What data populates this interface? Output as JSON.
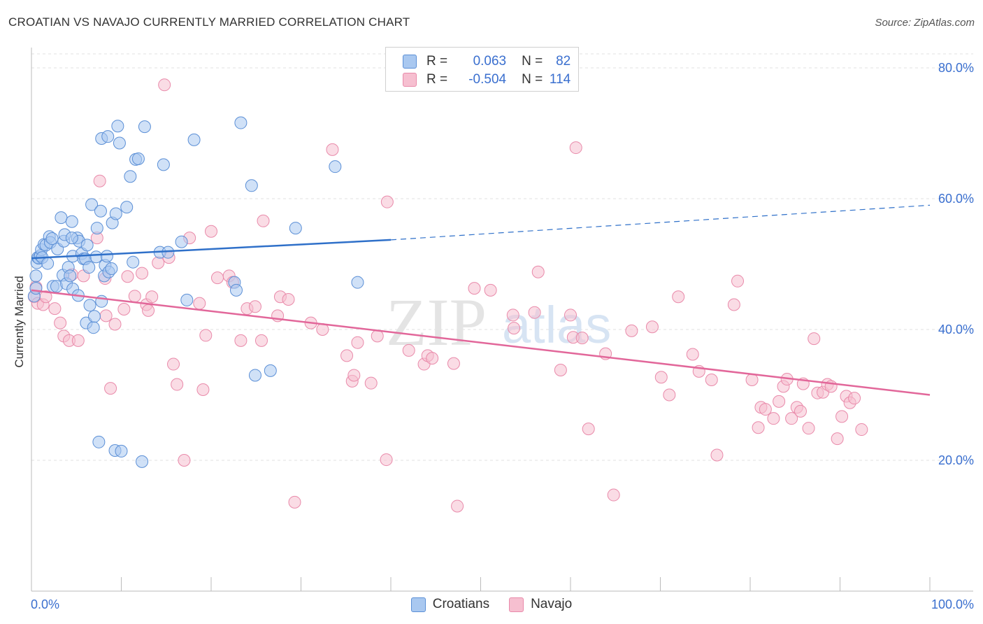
{
  "header": {
    "title": "CROATIAN VS NAVAJO CURRENTLY MARRIED CORRELATION CHART",
    "source": "Source: ZipAtlas.com"
  },
  "legend_top": {
    "rows": [
      {
        "r_label": "R =",
        "r_value": "0.063",
        "n_label": "N =",
        "n_value": "82"
      },
      {
        "r_label": "R =",
        "r_value": "-0.504",
        "n_label": "N =",
        "n_value": "114"
      }
    ]
  },
  "legend_bottom": {
    "items": [
      {
        "label": "Croatians"
      },
      {
        "label": "Navajo"
      }
    ]
  },
  "watermark": {
    "zip": "ZIP",
    "atlas": "atlas"
  },
  "colors": {
    "blue_fill": "#a9c8f0",
    "blue_stroke": "#5b8fd6",
    "blue_line": "#2f70c9",
    "pink_fill": "#f6bfd0",
    "pink_stroke": "#e98aaa",
    "pink_line": "#e2679a",
    "tick_text": "#3a6fcf",
    "grid": "#e2e2e2"
  },
  "chart_data": {
    "type": "scatter",
    "title": "CROATIAN VS NAVAJO CURRENTLY MARRIED CORRELATION CHART",
    "xlabel": "",
    "ylabel": "Currently Married",
    "xlim": [
      0,
      100
    ],
    "ylim": [
      0,
      80
    ],
    "x_tick_labels": [
      {
        "value": 0,
        "label": "0.0%"
      },
      {
        "value": 100,
        "label": "100.0%"
      }
    ],
    "y_tick_labels": [
      {
        "value": 20,
        "label": "20.0%"
      },
      {
        "value": 40,
        "label": "40.0%"
      },
      {
        "value": 60,
        "label": "60.0%"
      },
      {
        "value": 80,
        "label": "80.0%"
      }
    ],
    "x_minor_ticks": [
      0,
      10,
      20,
      30,
      40,
      50,
      60,
      70,
      80,
      90,
      100
    ],
    "grid": true,
    "series": [
      {
        "name": "Croatians",
        "r": 0.063,
        "n": 82,
        "trend": {
          "x0": 0,
          "y0": 50.9,
          "x1": 40,
          "y1": 53.7,
          "dash_x1": 100,
          "dash_y1": 59.0
        },
        "points": [
          [
            0.3,
            45.1
          ],
          [
            0.5,
            46.3
          ],
          [
            0.5,
            48.2
          ],
          [
            0.6,
            50.2
          ],
          [
            0.7,
            51.0
          ],
          [
            0.8,
            50.9
          ],
          [
            1.0,
            51.3
          ],
          [
            1.1,
            52.2
          ],
          [
            1.2,
            51.0
          ],
          [
            1.4,
            53.0
          ],
          [
            1.6,
            52.9
          ],
          [
            1.8,
            50.1
          ],
          [
            2.0,
            54.2
          ],
          [
            2.1,
            53.3
          ],
          [
            2.3,
            53.9
          ],
          [
            2.4,
            46.6
          ],
          [
            2.8,
            46.6
          ],
          [
            2.9,
            52.3
          ],
          [
            3.3,
            57.1
          ],
          [
            3.5,
            48.3
          ],
          [
            3.6,
            53.5
          ],
          [
            3.7,
            54.5
          ],
          [
            3.9,
            47.0
          ],
          [
            4.1,
            49.5
          ],
          [
            4.3,
            48.2
          ],
          [
            4.5,
            56.5
          ],
          [
            4.6,
            46.2
          ],
          [
            4.6,
            51.2
          ],
          [
            5.1,
            54.0
          ],
          [
            5.2,
            45.2
          ],
          [
            5.3,
            53.5
          ],
          [
            5.6,
            51.6
          ],
          [
            5.8,
            50.8
          ],
          [
            6.0,
            50.8
          ],
          [
            6.1,
            41.0
          ],
          [
            6.2,
            52.9
          ],
          [
            6.4,
            49.5
          ],
          [
            6.5,
            43.7
          ],
          [
            6.7,
            59.1
          ],
          [
            6.9,
            40.3
          ],
          [
            7.0,
            42.0
          ],
          [
            7.2,
            51.1
          ],
          [
            7.3,
            55.5
          ],
          [
            7.5,
            22.8
          ],
          [
            7.7,
            58.1
          ],
          [
            7.8,
            44.3
          ],
          [
            7.8,
            69.2
          ],
          [
            8.1,
            48.2
          ],
          [
            8.2,
            49.8
          ],
          [
            8.4,
            51.2
          ],
          [
            8.5,
            69.5
          ],
          [
            8.6,
            48.8
          ],
          [
            8.9,
            49.3
          ],
          [
            9.0,
            56.3
          ],
          [
            9.3,
            21.5
          ],
          [
            9.4,
            57.7
          ],
          [
            9.6,
            71.1
          ],
          [
            9.8,
            68.5
          ],
          [
            10.0,
            21.4
          ],
          [
            10.6,
            58.7
          ],
          [
            11.0,
            63.4
          ],
          [
            11.3,
            50.3
          ],
          [
            11.6,
            66.0
          ],
          [
            11.9,
            66.1
          ],
          [
            12.3,
            19.8
          ],
          [
            12.6,
            71.0
          ],
          [
            14.3,
            51.8
          ],
          [
            14.7,
            65.2
          ],
          [
            15.2,
            51.8
          ],
          [
            16.7,
            53.4
          ],
          [
            17.3,
            44.5
          ],
          [
            18.1,
            69.0
          ],
          [
            22.6,
            47.2
          ],
          [
            22.8,
            46.0
          ],
          [
            23.3,
            71.6
          ],
          [
            24.9,
            33.0
          ],
          [
            24.5,
            62.0
          ],
          [
            26.6,
            33.7
          ],
          [
            29.4,
            55.5
          ],
          [
            33.8,
            64.9
          ],
          [
            36.3,
            47.2
          ],
          [
            4.5,
            54.0
          ]
        ]
      },
      {
        "name": "Navajo",
        "r": -0.504,
        "n": 114,
        "trend": {
          "x0": 0,
          "y0": 46.0,
          "x1": 100,
          "y1": 30.0
        },
        "points": [
          [
            0.3,
            45.0
          ],
          [
            0.5,
            46.5
          ],
          [
            0.7,
            44.0
          ],
          [
            1.3,
            43.8
          ],
          [
            1.6,
            45.0
          ],
          [
            2.6,
            43.2
          ],
          [
            3.2,
            41.0
          ],
          [
            3.6,
            39.0
          ],
          [
            4.2,
            38.3
          ],
          [
            4.5,
            48.4
          ],
          [
            5.2,
            38.3
          ],
          [
            5.8,
            48.2
          ],
          [
            7.3,
            54.0
          ],
          [
            7.6,
            62.7
          ],
          [
            8.2,
            47.8
          ],
          [
            8.3,
            42.1
          ],
          [
            8.8,
            31.0
          ],
          [
            9.3,
            40.8
          ],
          [
            10.3,
            43.1
          ],
          [
            10.7,
            48.1
          ],
          [
            11.5,
            45.1
          ],
          [
            12.3,
            48.6
          ],
          [
            12.8,
            43.8
          ],
          [
            13.0,
            42.9
          ],
          [
            13.4,
            45.0
          ],
          [
            14.1,
            50.2
          ],
          [
            14.8,
            77.4
          ],
          [
            15.3,
            51.0
          ],
          [
            15.8,
            34.7
          ],
          [
            16.2,
            31.6
          ],
          [
            17.0,
            20.0
          ],
          [
            17.6,
            54.0
          ],
          [
            18.7,
            44.0
          ],
          [
            19.1,
            30.8
          ],
          [
            19.4,
            39.1
          ],
          [
            20.0,
            55.0
          ],
          [
            20.7,
            47.9
          ],
          [
            22.0,
            48.2
          ],
          [
            22.4,
            47.2
          ],
          [
            23.3,
            38.3
          ],
          [
            24.0,
            43.2
          ],
          [
            24.9,
            43.5
          ],
          [
            25.6,
            38.3
          ],
          [
            25.8,
            56.6
          ],
          [
            27.4,
            42.1
          ],
          [
            27.7,
            45.0
          ],
          [
            28.6,
            44.6
          ],
          [
            29.3,
            13.6
          ],
          [
            31.1,
            41.0
          ],
          [
            32.4,
            40.0
          ],
          [
            33.5,
            67.5
          ],
          [
            35.1,
            36.0
          ],
          [
            35.7,
            32.1
          ],
          [
            35.9,
            33.0
          ],
          [
            36.3,
            38.0
          ],
          [
            37.8,
            31.8
          ],
          [
            38.5,
            39.0
          ],
          [
            39.5,
            20.1
          ],
          [
            39.6,
            59.5
          ],
          [
            42.0,
            36.8
          ],
          [
            43.7,
            34.7
          ],
          [
            44.1,
            36.0
          ],
          [
            44.6,
            35.6
          ],
          [
            47.0,
            34.8
          ],
          [
            47.4,
            13.0
          ],
          [
            49.3,
            46.3
          ],
          [
            51.1,
            46.0
          ],
          [
            53.6,
            42.2
          ],
          [
            53.7,
            40.2
          ],
          [
            56.0,
            42.6
          ],
          [
            56.4,
            48.8
          ],
          [
            58.9,
            33.8
          ],
          [
            60.0,
            42.2
          ],
          [
            60.3,
            38.8
          ],
          [
            60.6,
            67.8
          ],
          [
            61.3,
            38.7
          ],
          [
            62.0,
            24.8
          ],
          [
            63.9,
            36.3
          ],
          [
            64.8,
            14.7
          ],
          [
            66.8,
            39.8
          ],
          [
            69.1,
            40.4
          ],
          [
            70.1,
            32.7
          ],
          [
            71.0,
            30.0
          ],
          [
            72.0,
            45.0
          ],
          [
            73.6,
            36.2
          ],
          [
            74.3,
            33.6
          ],
          [
            75.7,
            32.3
          ],
          [
            76.3,
            20.8
          ],
          [
            78.2,
            43.8
          ],
          [
            78.6,
            47.4
          ],
          [
            80.2,
            32.3
          ],
          [
            80.9,
            25.0
          ],
          [
            81.2,
            28.1
          ],
          [
            81.7,
            27.8
          ],
          [
            82.6,
            26.4
          ],
          [
            83.2,
            29.0
          ],
          [
            83.7,
            31.3
          ],
          [
            84.1,
            32.4
          ],
          [
            84.6,
            26.4
          ],
          [
            85.2,
            28.1
          ],
          [
            85.6,
            27.5
          ],
          [
            85.9,
            31.7
          ],
          [
            86.5,
            24.9
          ],
          [
            87.1,
            38.6
          ],
          [
            87.5,
            30.3
          ],
          [
            88.1,
            30.4
          ],
          [
            88.6,
            31.6
          ],
          [
            89.0,
            31.3
          ],
          [
            89.7,
            23.3
          ],
          [
            90.2,
            26.7
          ],
          [
            90.7,
            29.8
          ],
          [
            91.1,
            28.8
          ],
          [
            91.6,
            29.5
          ],
          [
            92.4,
            24.7
          ]
        ]
      }
    ]
  }
}
